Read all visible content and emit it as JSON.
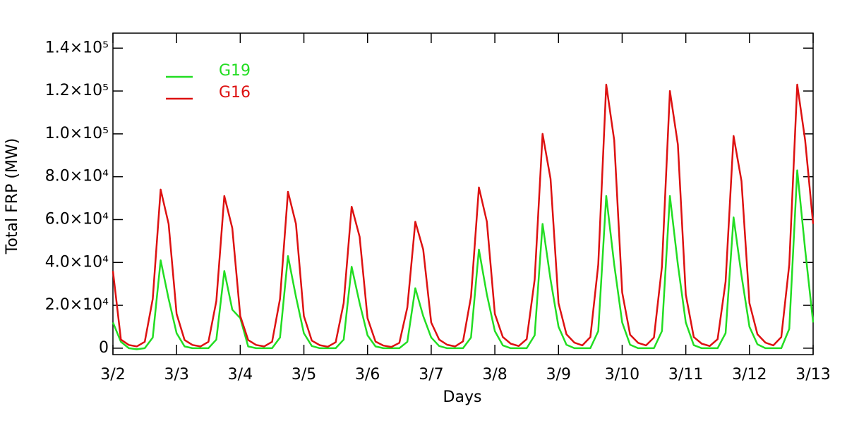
{
  "chart_data": {
    "type": "line",
    "x_label": "Days",
    "y_label": "Total FRP (MW)",
    "x": [
      0,
      0.125,
      0.25,
      0.375,
      0.5,
      0.625,
      0.75,
      0.875,
      1,
      1.125,
      1.25,
      1.375,
      1.5,
      1.625,
      1.75,
      1.875,
      2,
      2.125,
      2.25,
      2.375,
      2.5,
      2.625,
      2.75,
      2.875,
      3,
      3.125,
      3.25,
      3.375,
      3.5,
      3.625,
      3.75,
      3.875,
      4,
      4.125,
      4.25,
      4.375,
      4.5,
      4.625,
      4.75,
      4.875,
      5,
      5.125,
      5.25,
      5.375,
      5.5,
      5.625,
      5.75,
      5.875,
      6,
      6.125,
      6.25,
      6.375,
      6.5,
      6.625,
      6.75,
      6.875,
      7,
      7.125,
      7.25,
      7.375,
      7.5,
      7.625,
      7.75,
      7.875,
      8,
      8.125,
      8.25,
      8.375,
      8.5,
      8.625,
      8.75,
      8.875,
      9,
      9.125,
      9.25,
      9.375,
      9.5,
      9.625,
      9.75,
      9.875,
      10,
      10.125,
      10.25,
      10.375,
      10.5,
      10.625,
      10.75,
      10.875,
      11
    ],
    "series": [
      {
        "name": "G19",
        "color": "#22dd22",
        "values": [
          12000,
          3000,
          0,
          -500,
          0,
          5000,
          41000,
          23000,
          7000,
          800,
          0,
          0,
          0,
          4000,
          36000,
          18000,
          14000,
          800,
          0,
          0,
          0,
          5000,
          43000,
          24000,
          7000,
          1000,
          0,
          0,
          0,
          4000,
          38000,
          21000,
          6000,
          800,
          0,
          0,
          0,
          3000,
          28000,
          15000,
          5000,
          1000,
          0,
          0,
          0,
          5000,
          46000,
          25000,
          8000,
          1300,
          0,
          0,
          0,
          6000,
          58000,
          32000,
          10000,
          1600,
          0,
          0,
          0,
          8000,
          71000,
          39000,
          12000,
          1600,
          0,
          0,
          0,
          8000,
          71000,
          39000,
          12000,
          1400,
          0,
          0,
          0,
          7000,
          61000,
          34000,
          10000,
          1800,
          0,
          0,
          0,
          9000,
          83000,
          46000,
          12000
        ]
      },
      {
        "name": "G16",
        "color": "#dd1111",
        "values": [
          36000,
          4000,
          1500,
          800,
          3000,
          23000,
          74000,
          58000,
          16000,
          3800,
          1500,
          800,
          3000,
          22000,
          71000,
          56000,
          15000,
          3800,
          1500,
          800,
          3000,
          23000,
          73000,
          58000,
          15000,
          3500,
          1400,
          700,
          2800,
          21000,
          66000,
          52000,
          14000,
          3100,
          1200,
          600,
          2500,
          19000,
          59000,
          46000,
          12000,
          4000,
          1600,
          800,
          3200,
          24000,
          75000,
          59000,
          16000,
          5200,
          2100,
          1000,
          4200,
          32000,
          100000,
          79000,
          21000,
          6500,
          2600,
          1300,
          5200,
          39000,
          123000,
          97000,
          26000,
          6300,
          2500,
          1300,
          5000,
          38000,
          120000,
          95000,
          25000,
          5200,
          2100,
          1000,
          4200,
          31000,
          99000,
          78000,
          21000,
          6500,
          2600,
          1300,
          5200,
          39000,
          123000,
          97000,
          58000
        ]
      }
    ],
    "xlim": [
      0,
      11
    ],
    "xticks": [
      {
        "value": 0,
        "label": "3/2"
      },
      {
        "value": 1,
        "label": "3/3"
      },
      {
        "value": 2,
        "label": "3/4"
      },
      {
        "value": 3,
        "label": "3/5"
      },
      {
        "value": 4,
        "label": "3/6"
      },
      {
        "value": 5,
        "label": "3/7"
      },
      {
        "value": 6,
        "label": "3/8"
      },
      {
        "value": 7,
        "label": "3/9"
      },
      {
        "value": 8,
        "label": "3/10"
      },
      {
        "value": 9,
        "label": "3/11"
      },
      {
        "value": 10,
        "label": "3/12"
      },
      {
        "value": 11,
        "label": "3/13"
      }
    ],
    "ylim": [
      -3000,
      147000
    ],
    "yticks": [
      0,
      {
        "value": 20000,
        "label": "2.0×10⁴"
      },
      {
        "value": 40000,
        "label": "4.0×10⁴"
      },
      {
        "value": 60000,
        "label": "6.0×10⁴"
      },
      {
        "value": 80000,
        "label": "8.0×10⁴"
      },
      {
        "value": 100000,
        "label": "1.0×10⁵"
      },
      {
        "value": 120000,
        "label": "1.2×10⁵"
      },
      {
        "value": 140000,
        "label": "1.4×10⁵"
      }
    ],
    "legend": "upper left",
    "grid": false
  }
}
